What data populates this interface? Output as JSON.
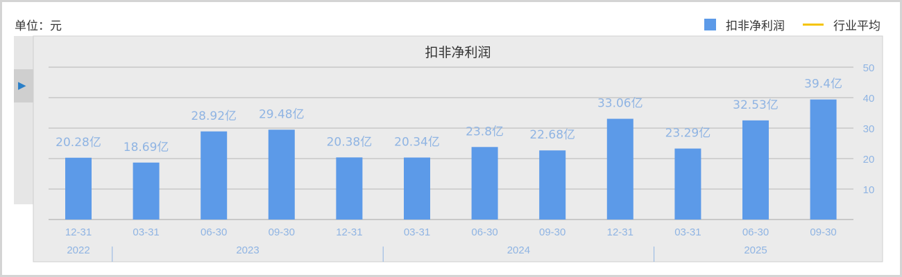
{
  "unit_label": "单位：元",
  "legend": [
    {
      "name": "扣非净利润",
      "color": "#5c9ae8"
    },
    {
      "name": "行业平均",
      "color": "#f5c400"
    }
  ],
  "side_toggle_icon": "play-triangle-icon",
  "chart_data": {
    "type": "bar",
    "title": "扣非净利润",
    "categories": [
      "12-31",
      "03-31",
      "06-30",
      "09-30",
      "12-31",
      "03-31",
      "06-30",
      "09-30",
      "12-31",
      "03-31",
      "06-30",
      "09-30"
    ],
    "years": [
      {
        "label": "2022",
        "span": [
          0,
          0
        ]
      },
      {
        "label": "2023",
        "span": [
          1,
          4
        ]
      },
      {
        "label": "2024",
        "span": [
          5,
          8
        ]
      },
      {
        "label": "2025",
        "span": [
          9,
          11
        ]
      }
    ],
    "series": [
      {
        "name": "扣非净利润",
        "values": [
          20.28,
          18.69,
          28.92,
          29.48,
          20.38,
          20.34,
          23.8,
          22.68,
          33.06,
          23.29,
          32.53,
          39.4
        ],
        "labels": [
          "20.28亿",
          "18.69亿",
          "28.92亿",
          "29.48亿",
          "20.38亿",
          "20.34亿",
          "23.8亿",
          "22.68亿",
          "33.06亿",
          "23.29亿",
          "32.53亿",
          "39.4亿"
        ]
      }
    ],
    "yunit": "亿",
    "ylim": [
      0,
      50
    ],
    "yticks": [
      10,
      20,
      30,
      40,
      50
    ],
    "yaxis_position": "right",
    "grid": true,
    "legend_position": "top-right",
    "colors": {
      "bar": "#5c9ae8",
      "label": "#8fb4e3",
      "background": "#ebebeb"
    }
  }
}
